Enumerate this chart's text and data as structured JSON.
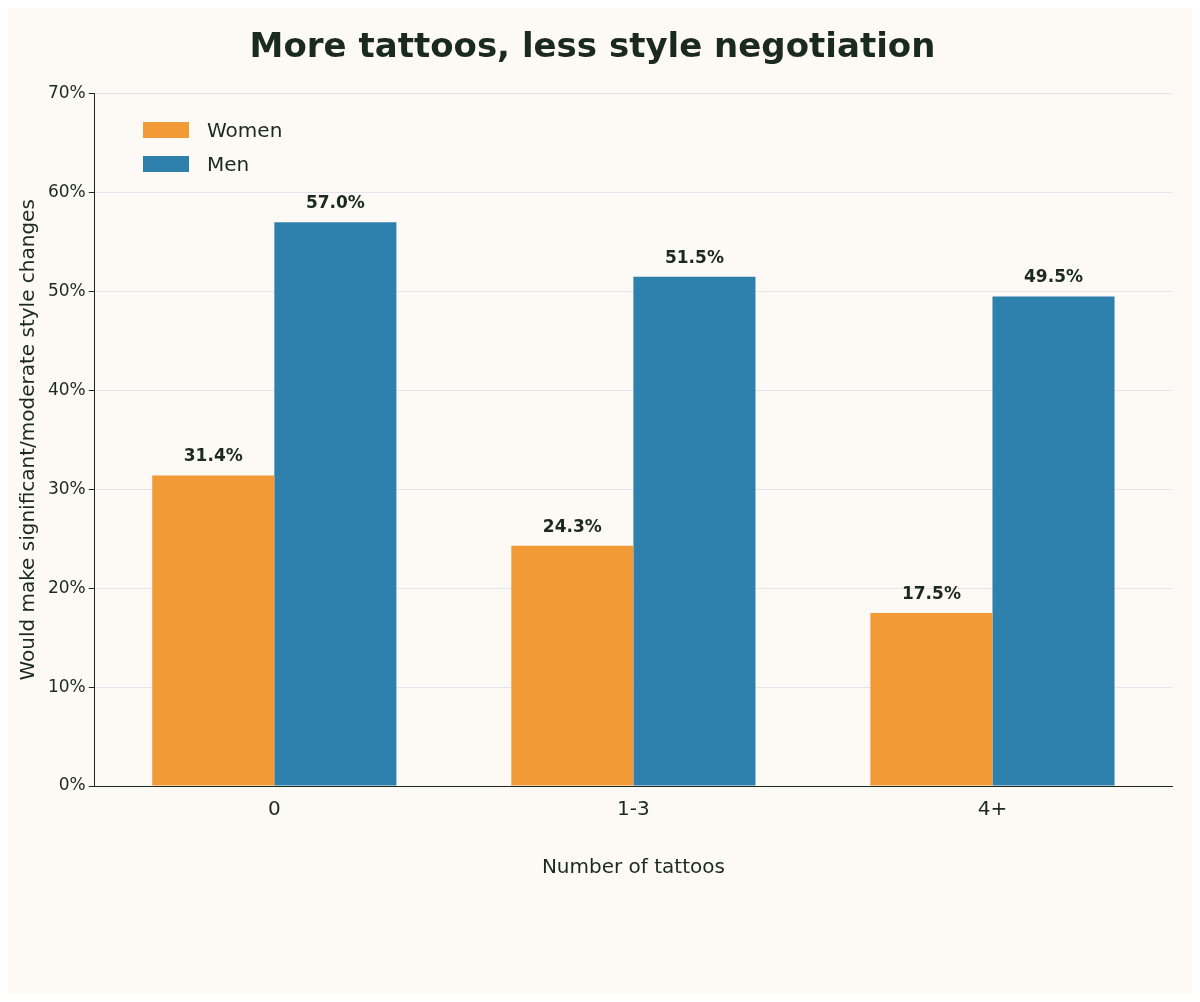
{
  "chart_data": {
    "type": "bar",
    "title": "More tattoos, less style negotiation",
    "xlabel": "Number of tattoos",
    "ylabel": "Would make significant/moderate style changes",
    "categories": [
      "0",
      "1-3",
      "4+"
    ],
    "series": [
      {
        "name": "Women",
        "color": "#f29a35",
        "values": [
          31.4,
          24.3,
          17.5
        ],
        "value_labels": [
          "31.4%",
          "24.3%",
          "17.5%"
        ]
      },
      {
        "name": "Men",
        "color": "#2e80ad",
        "values": [
          57.0,
          51.5,
          49.5
        ],
        "value_labels": [
          "57.0%",
          "51.5%",
          "49.5%"
        ]
      }
    ],
    "ylim": [
      0,
      70
    ],
    "yticks": [
      {
        "value": 0,
        "label": "0%"
      },
      {
        "value": 10,
        "label": "10%"
      },
      {
        "value": 20,
        "label": "20%"
      },
      {
        "value": 30,
        "label": "30%"
      },
      {
        "value": 40,
        "label": "40%"
      },
      {
        "value": 50,
        "label": "50%"
      },
      {
        "value": 60,
        "label": "60%"
      },
      {
        "value": 70,
        "label": "70%"
      }
    ],
    "grid": "y",
    "legend": "top left"
  }
}
